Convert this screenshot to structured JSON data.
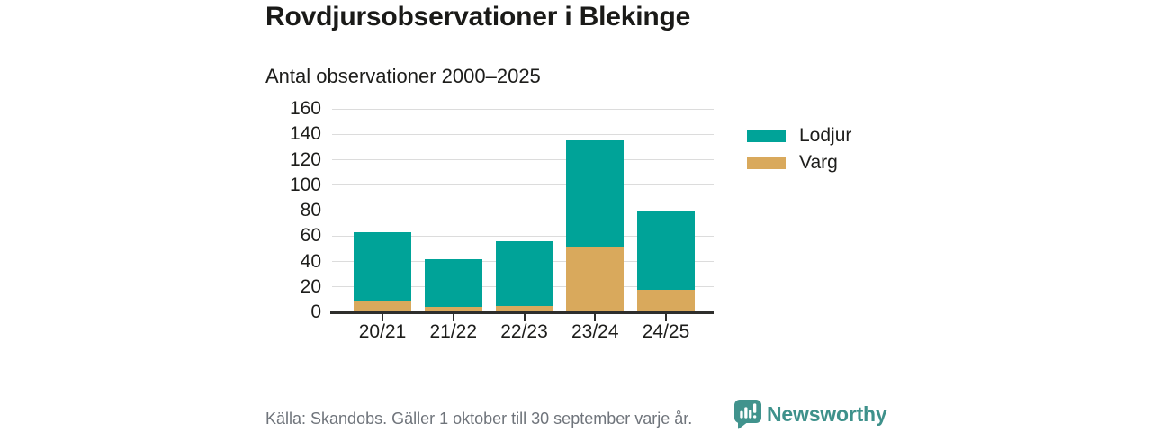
{
  "header": {
    "title": "Rovdjursobservationer i Blekinge",
    "subtitle": "Antal observationer 2000–2025"
  },
  "chart_data": {
    "type": "bar",
    "stacked": true,
    "title": "Rovdjursobservationer i Blekinge",
    "subtitle": "Antal observationer 2000–2025",
    "categories": [
      "20/21",
      "21/22",
      "22/23",
      "23/24",
      "24/25"
    ],
    "series": [
      {
        "name": "Varg",
        "color": "#d9a95c",
        "values": [
          9,
          4,
          5,
          52,
          18
        ]
      },
      {
        "name": "Lodjur",
        "color": "#00a398",
        "values": [
          54,
          38,
          51,
          83,
          62
        ]
      }
    ],
    "stack_totals": [
      63,
      42,
      56,
      135,
      80
    ],
    "xlabel": "",
    "ylabel": "",
    "ylim": [
      0,
      160
    ],
    "ytick_step": 20,
    "grid": true,
    "legend_position": "right",
    "legend": [
      {
        "label": "Lodjur",
        "color": "#00a398"
      },
      {
        "label": "Varg",
        "color": "#d9a95c"
      }
    ]
  },
  "footer": {
    "source": "Källa: Skandobs. Gäller 1 oktober till 30 september varje år.",
    "brand": "Newsworthy"
  },
  "colors": {
    "lodjur_teal": "#00a398",
    "varg_gold": "#d9a95c",
    "axis": "#2e2e2c",
    "grid": "#dcdcdc",
    "text": "#1d1d1b",
    "muted_text": "#6f747b",
    "brand_teal": "#3e918b",
    "background": "#ffffff"
  }
}
